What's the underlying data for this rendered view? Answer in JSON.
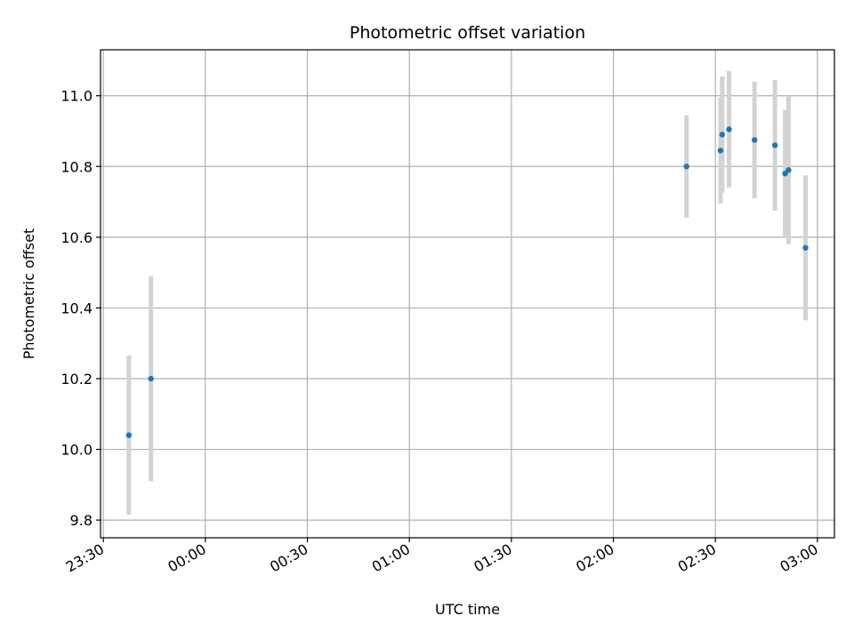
{
  "chart_data": {
    "type": "scatter",
    "title": "Photometric offset variation",
    "xlabel": "UTC time",
    "ylabel": "Photometric offset",
    "grid": true,
    "x_ticks": [
      "23:30",
      "00:00",
      "00:30",
      "01:00",
      "01:30",
      "02:00",
      "02:30",
      "03:00"
    ],
    "y_ticks": [
      "9.8",
      "10.0",
      "10.2",
      "10.4",
      "10.6",
      "10.8",
      "11.0"
    ],
    "ylim": [
      9.75,
      11.13
    ],
    "xlim": [
      "23:30:00",
      "03:05:00"
    ],
    "marker_color": "#1f77b4",
    "errorbar_color": "#d3d3d3",
    "points": [
      {
        "x": "23:37:30",
        "y": 10.04,
        "err": 0.225
      },
      {
        "x": "23:44:00",
        "y": 10.2,
        "err": 0.29
      },
      {
        "x": "02:21:30",
        "y": 10.8,
        "err": 0.145
      },
      {
        "x": "02:31:30",
        "y": 10.845,
        "err": 0.15
      },
      {
        "x": "02:32:00",
        "y": 10.89,
        "err": 0.165
      },
      {
        "x": "02:34:00",
        "y": 10.905,
        "err": 0.165
      },
      {
        "x": "02:41:30",
        "y": 10.875,
        "err": 0.165
      },
      {
        "x": "02:47:30",
        "y": 10.86,
        "err": 0.185
      },
      {
        "x": "02:50:30",
        "y": 10.78,
        "err": 0.18
      },
      {
        "x": "02:51:30",
        "y": 10.79,
        "err": 0.21
      },
      {
        "x": "02:56:30",
        "y": 10.57,
        "err": 0.205
      }
    ]
  }
}
